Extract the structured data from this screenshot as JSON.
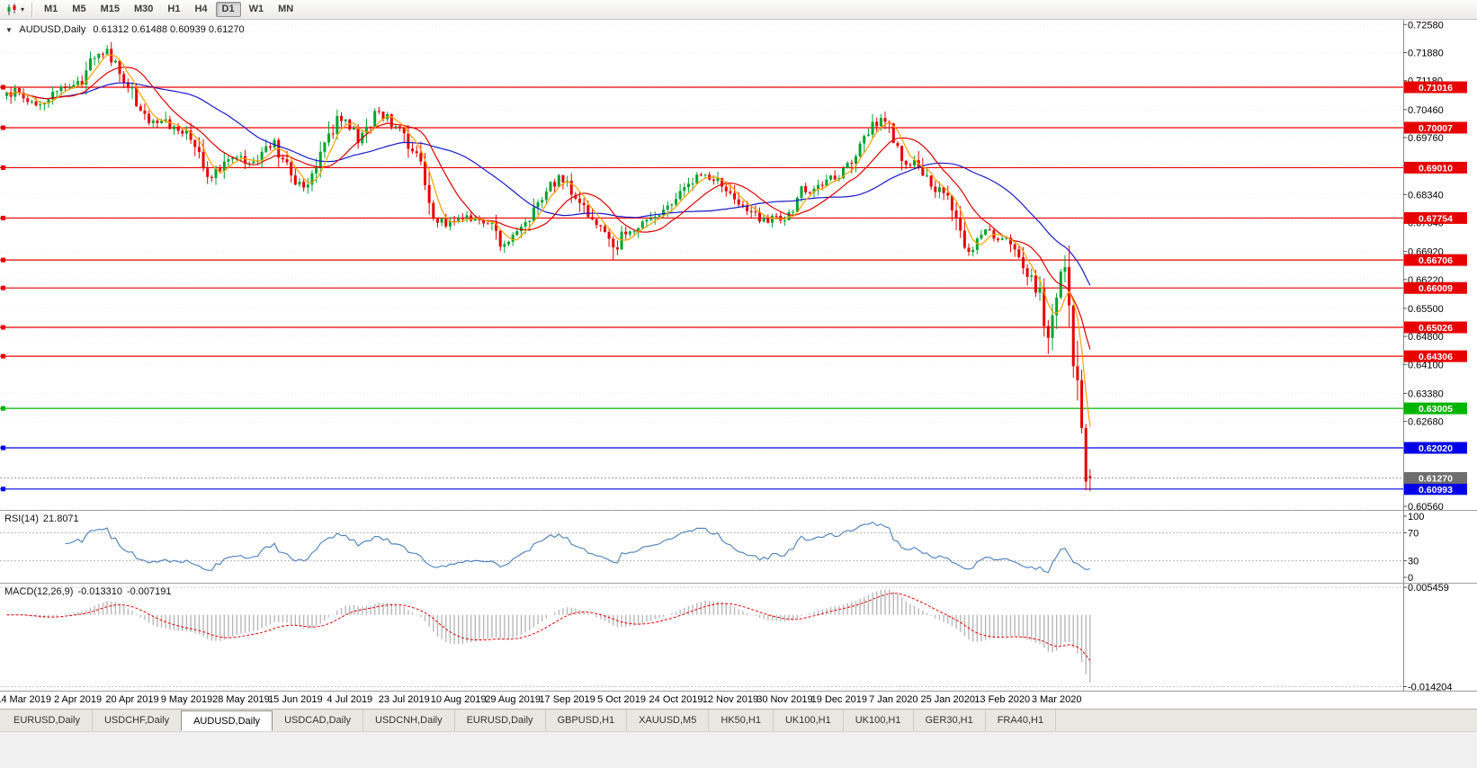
{
  "toolbar": {
    "chart_icon": "candlestick-chart-icon",
    "dropdown_caret": "▾",
    "timeframes": [
      {
        "label": "M1",
        "active": false
      },
      {
        "label": "M5",
        "active": false
      },
      {
        "label": "M15",
        "active": false
      },
      {
        "label": "M30",
        "active": false
      },
      {
        "label": "H1",
        "active": false
      },
      {
        "label": "H4",
        "active": false
      },
      {
        "label": "D1",
        "active": true
      },
      {
        "label": "W1",
        "active": false
      },
      {
        "label": "MN",
        "active": false
      }
    ]
  },
  "chart": {
    "expand_icon": "▼",
    "symbol_label": "AUDUSD,Daily",
    "ohlc_text": "0.61312 0.61488 0.60939 0.61270"
  },
  "rsi": {
    "label": "RSI(14)",
    "value": "21.8071",
    "axis_labels": [
      "100",
      "70",
      "30",
      "0"
    ]
  },
  "macd": {
    "label": "MACD(12,26,9)",
    "main_value": "-0.013310",
    "signal_value": "-0.007191",
    "axis_top": "0.005459",
    "axis_bottom": "-0.014204"
  },
  "tabs": [
    {
      "label": "EURUSD,Daily",
      "active": false
    },
    {
      "label": "USDCHF,Daily",
      "active": false
    },
    {
      "label": "AUDUSD,Daily",
      "active": true
    },
    {
      "label": "USDCAD,Daily",
      "active": false
    },
    {
      "label": "USDCNH,Daily",
      "active": false
    },
    {
      "label": "EURUSD,Daily",
      "active": false
    },
    {
      "label": "GBPUSD,H1",
      "active": false
    },
    {
      "label": "XAUUSD,M5",
      "active": false
    },
    {
      "label": "HK50,H1",
      "active": false
    },
    {
      "label": "UK100,H1",
      "active": false
    },
    {
      "label": "UK100,H1",
      "active": false
    },
    {
      "label": "GER30,H1",
      "active": false
    },
    {
      "label": "FRA40,H1",
      "active": false
    }
  ],
  "chart_data": {
    "type": "candlestick",
    "symbol": "AUDUSD",
    "timeframe": "Daily",
    "num_candles": 260,
    "last_candle": {
      "open": 0.61312,
      "high": 0.61488,
      "low": 0.60939,
      "close": 0.6127
    },
    "price_axis": {
      "ticks": [
        "0.72580",
        "0.71880",
        "0.71180",
        "0.70460",
        "0.69760",
        "0.69060",
        "0.68340",
        "0.67640",
        "0.66920",
        "0.66220",
        "0.65500",
        "0.64800",
        "0.64100",
        "0.63380",
        "0.62680",
        "0.61960",
        "0.60560"
      ],
      "top_price": 0.72699,
      "bottom_price": 0.60495,
      "current_price": 0.6127,
      "current_price_label": "0.61270"
    },
    "date_ticks": {
      "first_index": 4,
      "step": 13,
      "labels": [
        "14 Mar 2019",
        "2 Apr 2019",
        "20 Apr 2019",
        "9 May 2019",
        "28 May 2019",
        "15 Jun 2019",
        "4 Jul 2019",
        "23 Jul 2019",
        "10 Aug 2019",
        "29 Aug 2019",
        "17 Sep 2019",
        "5 Oct 2019",
        "24 Oct 2019",
        "12 Nov 2019",
        "30 Nov 2019",
        "19 Dec 2019",
        "7 Jan 2020",
        "25 Jan 2020",
        "13 Feb 2020",
        "3 Mar 2020"
      ]
    },
    "price_path_anchors": [
      [
        0,
        0.708
      ],
      [
        2,
        0.71
      ],
      [
        5,
        0.707
      ],
      [
        8,
        0.7062
      ],
      [
        11,
        0.7085
      ],
      [
        14,
        0.71
      ],
      [
        17,
        0.7105
      ],
      [
        19,
        0.715
      ],
      [
        21,
        0.718
      ],
      [
        24,
        0.7188
      ],
      [
        26,
        0.7165
      ],
      [
        28,
        0.712
      ],
      [
        30,
        0.7085
      ],
      [
        32,
        0.7035
      ],
      [
        34,
        0.701
      ],
      [
        37,
        0.7025
      ],
      [
        40,
        0.6995
      ],
      [
        43,
        0.6985
      ],
      [
        46,
        0.6935
      ],
      [
        48,
        0.6868
      ],
      [
        51,
        0.6905
      ],
      [
        53,
        0.693
      ],
      [
        56,
        0.6925
      ],
      [
        59,
        0.691
      ],
      [
        62,
        0.6945
      ],
      [
        64,
        0.696
      ],
      [
        66,
        0.692
      ],
      [
        69,
        0.687
      ],
      [
        71,
        0.6845
      ],
      [
        74,
        0.6895
      ],
      [
        77,
        0.6975
      ],
      [
        79,
        0.7032
      ],
      [
        82,
        0.7005
      ],
      [
        84,
        0.6965
      ],
      [
        86,
        0.6995
      ],
      [
        88,
        0.7045
      ],
      [
        91,
        0.7025
      ],
      [
        93,
        0.7
      ],
      [
        95,
        0.6985
      ],
      [
        97,
        0.694
      ],
      [
        99,
        0.69
      ],
      [
        101,
        0.68
      ],
      [
        103,
        0.6775
      ],
      [
        105,
        0.6755
      ],
      [
        107,
        0.6765
      ],
      [
        110,
        0.6775
      ],
      [
        113,
        0.6765
      ],
      [
        116,
        0.6755
      ],
      [
        118,
        0.6715
      ],
      [
        121,
        0.673
      ],
      [
        124,
        0.676
      ],
      [
        126,
        0.681
      ],
      [
        129,
        0.684
      ],
      [
        132,
        0.688
      ],
      [
        134,
        0.686
      ],
      [
        137,
        0.682
      ],
      [
        140,
        0.6775
      ],
      [
        142,
        0.674
      ],
      [
        145,
        0.6695
      ],
      [
        147,
        0.673
      ],
      [
        150,
        0.6745
      ],
      [
        153,
        0.6765
      ],
      [
        156,
        0.6785
      ],
      [
        159,
        0.682
      ],
      [
        162,
        0.685
      ],
      [
        165,
        0.6875
      ],
      [
        167,
        0.6885
      ],
      [
        170,
        0.6865
      ],
      [
        173,
        0.684
      ],
      [
        176,
        0.681
      ],
      [
        179,
        0.6785
      ],
      [
        181,
        0.677
      ],
      [
        184,
        0.6775
      ],
      [
        186,
        0.677
      ],
      [
        188,
        0.679
      ],
      [
        190,
        0.684
      ],
      [
        193,
        0.685
      ],
      [
        196,
        0.687
      ],
      [
        199,
        0.6885
      ],
      [
        201,
        0.691
      ],
      [
        203,
        0.6945
      ],
      [
        206,
        0.699
      ],
      [
        209,
        0.7028
      ],
      [
        211,
        0.7
      ],
      [
        213,
        0.6945
      ],
      [
        215,
        0.691
      ],
      [
        217,
        0.6925
      ],
      [
        220,
        0.687
      ],
      [
        223,
        0.684
      ],
      [
        225,
        0.682
      ],
      [
        227,
        0.676
      ],
      [
        230,
        0.669
      ],
      [
        232,
        0.671
      ],
      [
        234,
        0.6745
      ],
      [
        236,
        0.673
      ],
      [
        238,
        0.6725
      ],
      [
        241,
        0.669
      ],
      [
        243,
        0.6655
      ],
      [
        245,
        0.662
      ],
      [
        247,
        0.658
      ],
      [
        248,
        0.654
      ],
      [
        249,
        0.648
      ],
      [
        250,
        0.6555
      ],
      [
        251,
        0.659
      ],
      [
        252,
        0.6625
      ],
      [
        253,
        0.664
      ],
      [
        254,
        0.656
      ],
      [
        255,
        0.644
      ],
      [
        256,
        0.634
      ],
      [
        257,
        0.621
      ],
      [
        258,
        0.61
      ],
      [
        259,
        0.6127
      ]
    ],
    "forced_lows": [
      [
        48,
        0.6865
      ],
      [
        145,
        0.6671
      ],
      [
        249,
        0.6436
      ],
      [
        258,
        0.6096
      ]
    ],
    "forced_highs": [
      [
        24,
        0.7192
      ],
      [
        88,
        0.7048
      ],
      [
        209,
        0.7035
      ],
      [
        253,
        0.6683
      ]
    ],
    "horizontal_lines": [
      {
        "price": 0.71016,
        "label": "0.71016",
        "color": "#e60000"
      },
      {
        "price": 0.70007,
        "label": "0.70007",
        "color": "#e60000"
      },
      {
        "price": 0.6901,
        "label": "0.69010",
        "color": "#e60000"
      },
      {
        "price": 0.67754,
        "label": "0.67754",
        "color": "#e60000"
      },
      {
        "price": 0.66706,
        "label": "0.66706",
        "color": "#e60000"
      },
      {
        "price": 0.66009,
        "label": "0.66009",
        "color": "#e60000"
      },
      {
        "price": 0.65026,
        "label": "0.65026",
        "color": "#e60000"
      },
      {
        "price": 0.64306,
        "label": "0.64306",
        "color": "#e60000"
      },
      {
        "price": 0.63005,
        "label": "0.63005",
        "color": "#00b400"
      },
      {
        "price": 0.6202,
        "label": "0.62020",
        "color": "#0000e6"
      },
      {
        "price": 0.60993,
        "label": "0.60993",
        "color": "#0000e6"
      }
    ],
    "moving_averages": [
      {
        "period": 34,
        "type": "sma",
        "color": "#1919cc"
      },
      {
        "period": 13,
        "type": "sma",
        "color": "#e00000"
      },
      {
        "period": 5,
        "type": "sma",
        "color": "#ffa000"
      }
    ],
    "indicators": [
      {
        "name": "RSI",
        "period": 14,
        "last": 21.8071,
        "levels": [
          70,
          30
        ],
        "range": [
          0,
          100
        ]
      },
      {
        "name": "MACD",
        "fast": 12,
        "slow": 26,
        "signal": 9,
        "last_main": -0.01331,
        "last_signal": -0.007191,
        "range": [
          -0.014204,
          0.005459
        ]
      }
    ],
    "colors": {
      "up": "#00a330",
      "down": "#e60000",
      "rsi": "#4a7ebb",
      "macd_hist": "#b8b8b8",
      "macd_signal": "#e60000",
      "grid": "#ececec",
      "current_price_tag": "#6e6e6e"
    }
  }
}
